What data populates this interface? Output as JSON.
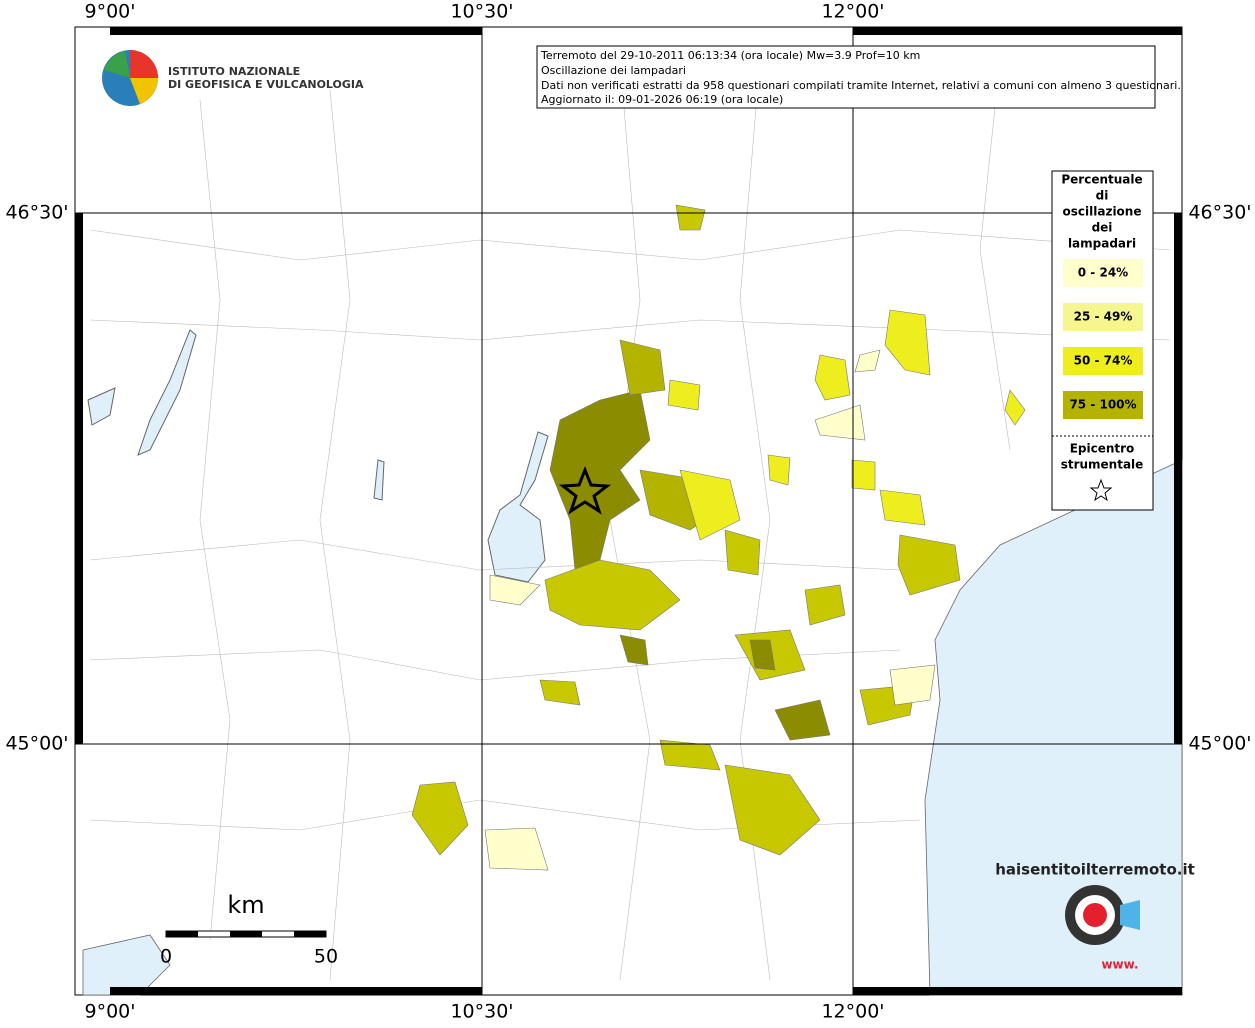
{
  "header": {
    "logo_lines": [
      "ISTITUTO NAZIONALE",
      "DI GEOFISICA E VULCANOLOGIA"
    ]
  },
  "info_box": {
    "lines": [
      "Terremoto del 29-10-2011 06:13:34 (ora locale) Mw=3.9 Prof=10 km",
      "Oscillazione dei lampadari",
      "Dati non verificati estratti da 958 questionari compilati tramite Internet, relativi a comuni con almeno 3 questionari.",
      "Aggiornato il: 09-01-2026 06:19 (ora locale)"
    ]
  },
  "grid": {
    "longitudes": [
      "9°00'",
      "10°30'",
      "12°00'"
    ],
    "latitudes": [
      "46°30'",
      "45°00'"
    ]
  },
  "legend": {
    "title_lines": [
      "Percentuale",
      "di",
      "oscillazione",
      "dei",
      "lampadari"
    ],
    "classes": [
      {
        "label": "0 - 24%",
        "color": "#ffffcc"
      },
      {
        "label": "25 - 49%",
        "color": "#f6f690"
      },
      {
        "label": "50 - 74%",
        "color": "#eeee1e"
      },
      {
        "label": "75 - 100%",
        "color": "#b4b400"
      }
    ],
    "epicenter_lines": [
      "Epicentro",
      "strumentale"
    ]
  },
  "scale_bar": {
    "unit": "km",
    "labels": [
      "0",
      "50"
    ]
  },
  "badge": {
    "text": "haisentitoilterremoto.it",
    "prefix": "www."
  }
}
